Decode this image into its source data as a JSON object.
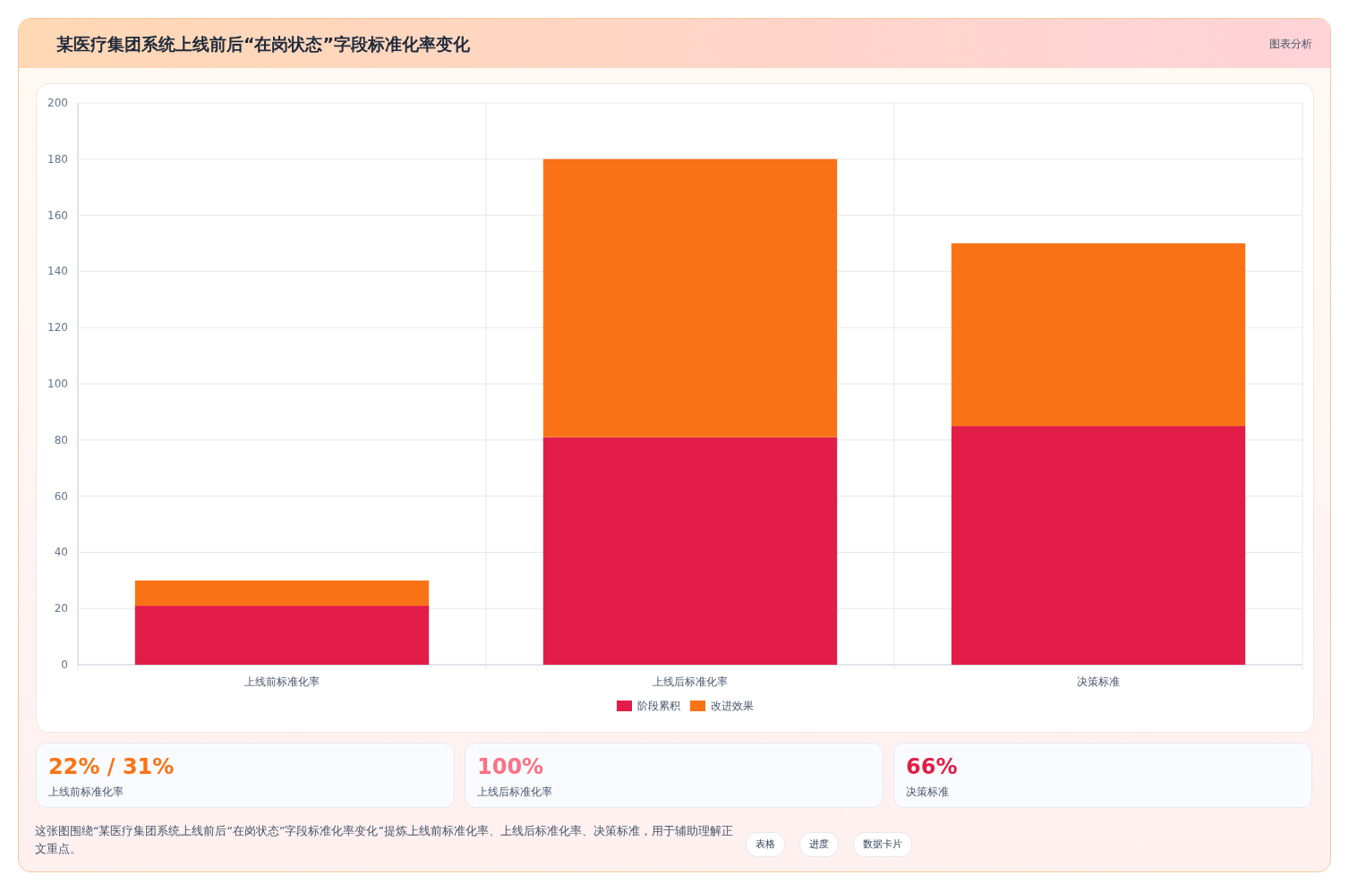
{
  "chart_data": [
    {
      "type": "bar",
      "title": "某医疗集团系统上线前后“在岗状态”字段标准化率变化",
      "categories": [
        "上线前标准化率",
        "上线后标准化率",
        "决策标准"
      ],
      "stacked": true,
      "series": [
        {
          "name": "阶段累积",
          "color": "#e11d48",
          "values": [
            21,
            81,
            85
          ]
        },
        {
          "name": "改进效果",
          "color": "#f97316",
          "values": [
            9,
            99,
            65
          ]
        }
      ],
      "ylim": [
        0,
        200
      ],
      "yticks": [
        0,
        20,
        40,
        60,
        80,
        100,
        120,
        140,
        160,
        180,
        200
      ],
      "grid": true,
      "legend": "bottom",
      "annotations": [
        "图表分析",
        "这张图围绕“某医疗集团系统上线前后“在岗状态”字段标准化率变化”提炼上线前标准化率、上线后标准化率、决策标准，用于辅助理解正文重点。",
        "表格",
        "进度",
        "数据卡片"
      ]
    },
    {
      "type": "other",
      "annotations": [
        "22% / 31%",
        "上线前标准化率",
        "100%",
        "上线后标准化率",
        "66%",
        "决策标准"
      ]
    }
  ]
}
